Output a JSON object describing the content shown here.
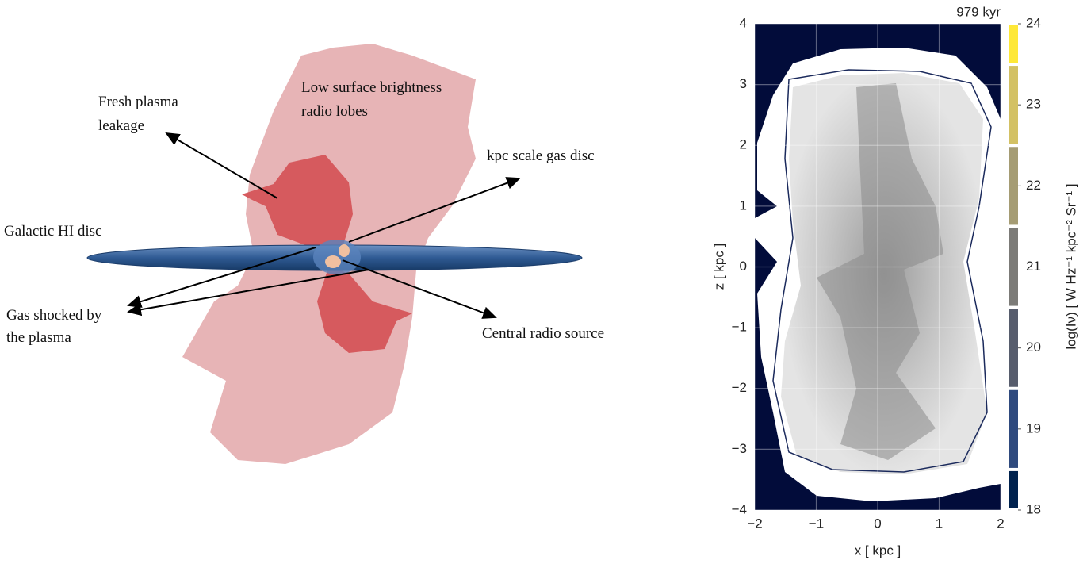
{
  "diagram": {
    "labels": {
      "fresh_plasma": [
        "Fresh plasma",
        "leakage"
      ],
      "radio_lobes": [
        "Low surface brightness",
        "radio lobes"
      ],
      "gas_disc": "kpc scale gas disc",
      "hi_disc": "Galactic HI disc",
      "shocked_gas": [
        "Gas shocked by",
        "the plasma"
      ],
      "central_source": "Central radio source"
    }
  },
  "plot": {
    "title": "979 kyr",
    "xlabel": "x [ kpc ]",
    "ylabel": "z [ kpc ]",
    "xlim": [
      -2,
      2
    ],
    "ylim": [
      -4,
      4
    ],
    "xticks": [
      {
        "value": -2,
        "label": "−2"
      },
      {
        "value": -1,
        "label": "−1"
      },
      0,
      1,
      2
    ],
    "yticks": [
      {
        "value": -4,
        "label": "−4"
      },
      {
        "value": -3,
        "label": "−3"
      },
      {
        "value": -2,
        "label": "−2"
      },
      {
        "value": -1,
        "label": "−1"
      },
      0,
      1,
      2,
      3,
      4
    ],
    "grid": true,
    "colorbar": {
      "label": "log(Iν) [ W Hz⁻¹ kpc⁻² Sr⁻¹ ]",
      "lim": [
        18,
        24
      ],
      "ticks": [
        18,
        19,
        20,
        21,
        22,
        23,
        24
      ],
      "colors": [
        "#00224e",
        "#2f4a7e",
        "#575d6d",
        "#7c7b78",
        "#a59c74",
        "#d3c164",
        "#fee838"
      ]
    }
  }
}
